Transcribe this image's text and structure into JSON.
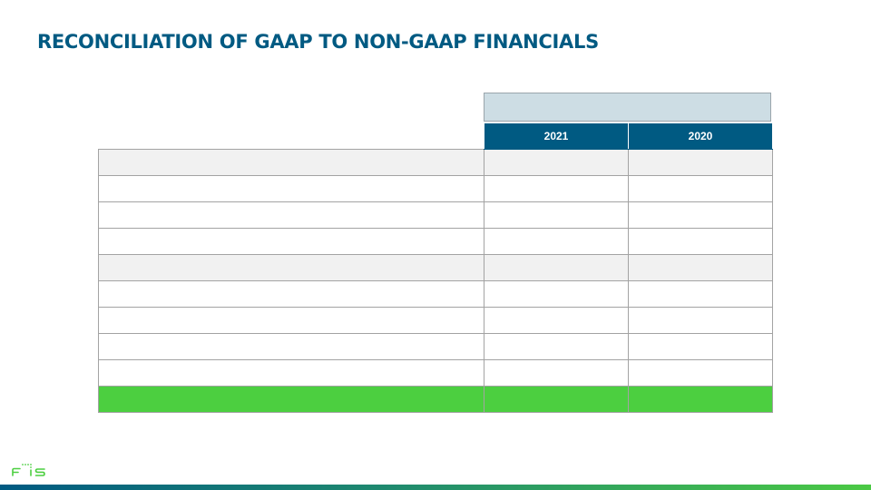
{
  "slide": {
    "title": "RECONCILIATION OF GAAP TO NON-GAAP FINANCIALS"
  },
  "table": {
    "period_label": "",
    "headers": [
      "",
      "2021",
      "2020"
    ],
    "rows": [
      {
        "cells": [
          "",
          "",
          ""
        ],
        "shaded": true
      },
      {
        "cells": [
          "",
          "",
          ""
        ],
        "shaded": false
      },
      {
        "cells": [
          "",
          "",
          ""
        ],
        "shaded": false
      },
      {
        "cells": [
          "",
          "",
          ""
        ],
        "shaded": false
      },
      {
        "cells": [
          "",
          "",
          ""
        ],
        "shaded": true
      },
      {
        "cells": [
          "",
          "",
          ""
        ],
        "shaded": false
      },
      {
        "cells": [
          "",
          "",
          ""
        ],
        "shaded": false
      },
      {
        "cells": [
          "",
          "",
          ""
        ],
        "shaded": false
      },
      {
        "cells": [
          "",
          "",
          ""
        ],
        "shaded": false
      },
      {
        "cells": [
          "",
          "",
          ""
        ],
        "total": true
      }
    ]
  },
  "brand": {
    "logo_text": "FIS",
    "accent": "#4ccf40",
    "primary": "#005a82",
    "header_band": "#cddde4"
  }
}
